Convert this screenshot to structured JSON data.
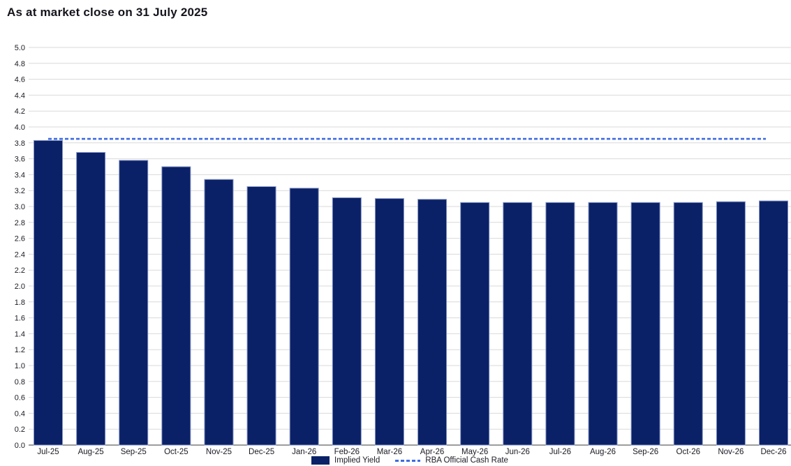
{
  "title": "As at market close on 31 July 2025",
  "chart_data": {
    "type": "bar",
    "title": "As at market close on 31 July 2025",
    "categories": [
      "Jul-25",
      "Aug-25",
      "Sep-25",
      "Oct-25",
      "Nov-25",
      "Dec-25",
      "Jan-26",
      "Feb-26",
      "Mar-26",
      "Apr-26",
      "May-26",
      "Jun-26",
      "Jul-26",
      "Aug-26",
      "Sep-26",
      "Oct-26",
      "Nov-26",
      "Dec-26"
    ],
    "series": [
      {
        "name": "Implied Yield",
        "type": "bar",
        "values": [
          3.83,
          3.68,
          3.58,
          3.5,
          3.34,
          3.25,
          3.23,
          3.11,
          3.1,
          3.09,
          3.05,
          3.05,
          3.05,
          3.05,
          3.05,
          3.05,
          3.06,
          3.07
        ],
        "color": "#0a2167",
        "border_color": "#8494c4"
      },
      {
        "name": "RBA Official Cash Rate",
        "type": "line",
        "line_style": "dashed",
        "value": 3.85,
        "color": "#3e6be1"
      }
    ],
    "xlabel": "",
    "ylabel": "",
    "ylim": [
      0.0,
      5.0
    ],
    "ytick_step": 0.2,
    "ytick_decimals": 1,
    "grid": true,
    "gridline_color": "#d9d9d9",
    "axis_line_color": "#3a3a3a",
    "tick_label_color": "#1b1b24",
    "legend_position": "bottom-center"
  }
}
